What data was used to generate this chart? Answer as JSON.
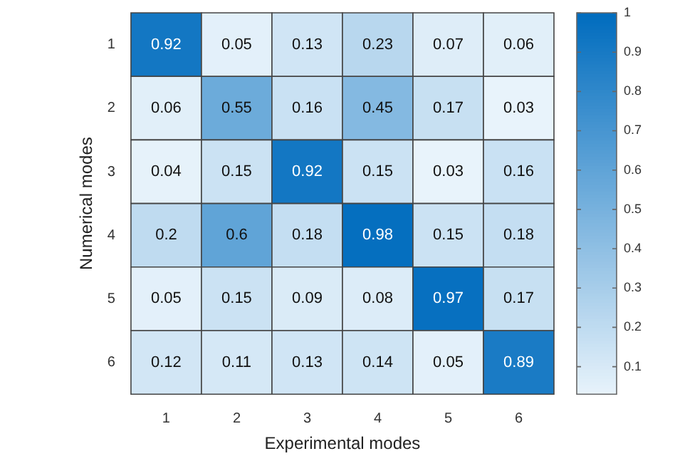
{
  "chart_data": {
    "type": "heatmap",
    "xlabel": "Experimental modes",
    "ylabel": "Numerical modes",
    "categories": [
      "1",
      "2",
      "3",
      "4",
      "5",
      "6"
    ],
    "y_categories": [
      "1",
      "2",
      "3",
      "4",
      "5",
      "6"
    ],
    "cells": [
      [
        0.92,
        0.05,
        0.13,
        0.23,
        0.07,
        0.06
      ],
      [
        0.06,
        0.55,
        0.16,
        0.45,
        0.17,
        0.03
      ],
      [
        0.04,
        0.15,
        0.92,
        0.15,
        0.03,
        0.16
      ],
      [
        0.2,
        0.6,
        0.18,
        0.98,
        0.15,
        0.18
      ],
      [
        0.05,
        0.15,
        0.09,
        0.08,
        0.97,
        0.17
      ],
      [
        0.12,
        0.11,
        0.13,
        0.14,
        0.05,
        0.89
      ]
    ],
    "data_labels": true,
    "clim": [
      0.03,
      1
    ],
    "cticks": [
      0.1,
      0.2,
      0.3,
      0.4,
      0.5,
      0.6,
      0.7,
      0.8,
      0.9,
      1
    ]
  }
}
